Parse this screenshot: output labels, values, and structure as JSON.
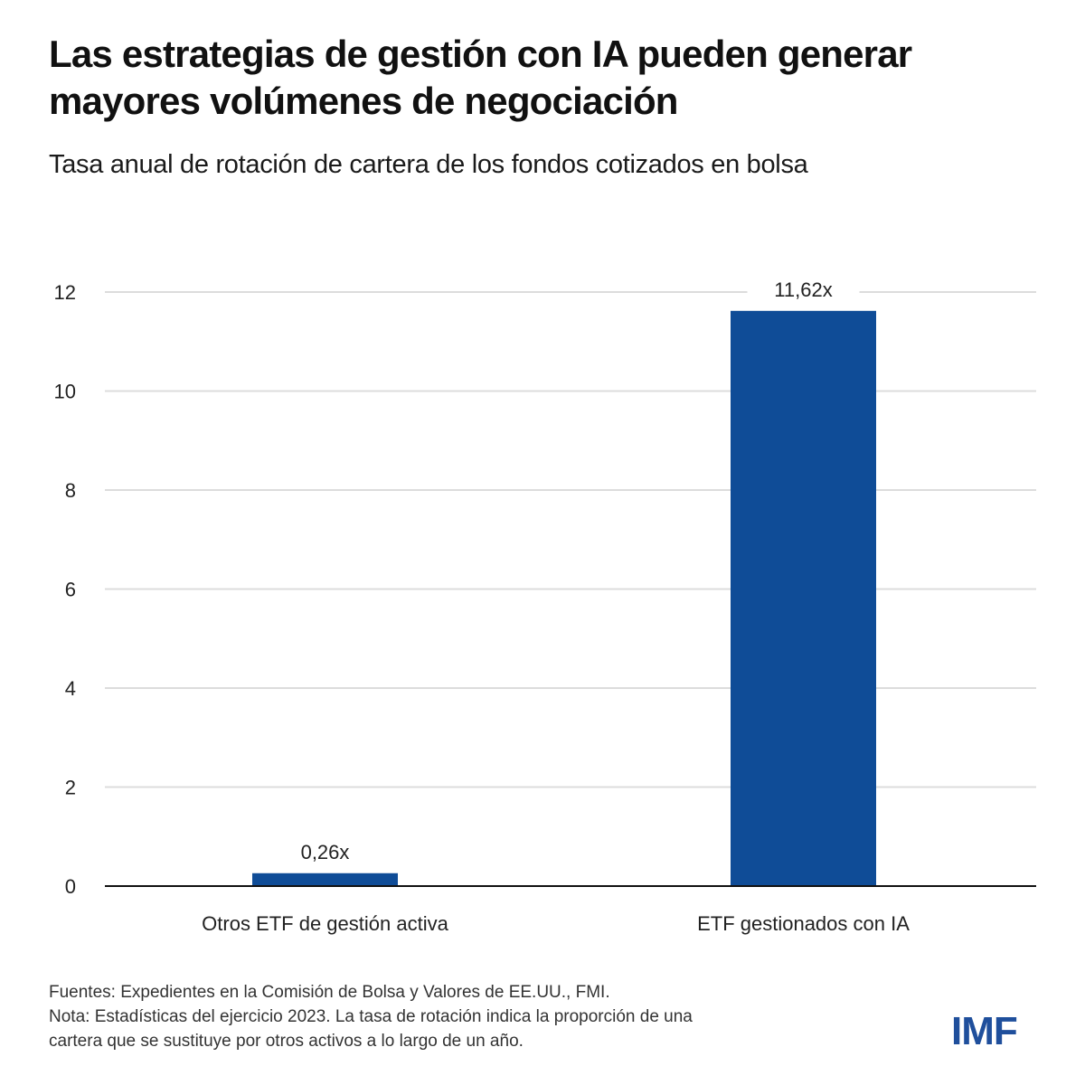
{
  "header": {
    "title": "Las estrategias de gestión con IA pueden generar mayores volúmenes de negociación",
    "subtitle": "Tasa anual de rotación de cartera de los fondos cotizados en bolsa"
  },
  "chart_data": {
    "type": "bar",
    "title": "Las estrategias de gestión con IA pueden generar mayores volúmenes de negociación",
    "subtitle": "Tasa anual de rotación de cartera de los fondos cotizados en bolsa",
    "categories": [
      "Otros ETF de gestión activa",
      "ETF gestionados con IA"
    ],
    "values": [
      0.26,
      11.62
    ],
    "data_labels": [
      "0,26x",
      "11,62x"
    ],
    "xlabel": "",
    "ylabel": "",
    "ylim": [
      0,
      12
    ],
    "yticks": [
      0,
      2,
      4,
      6,
      8,
      10,
      12
    ],
    "ytick_labels": [
      "0",
      "2",
      "4",
      "6",
      "8",
      "10",
      "12"
    ],
    "grid": true,
    "legend": "none",
    "bar_color": "#0f4c97"
  },
  "footer": {
    "sources": "Fuentes: Expedientes en la Comisión de Bolsa y Valores de EE.UU., FMI.",
    "note_line1": "Nota: Estadísticas del ejercicio 2023. La tasa de rotación indica la proporción de una",
    "note_line2": "cartera que se sustituye por otros activos a lo largo de un año."
  },
  "logo": {
    "text": "IMF",
    "color": "#1f4f9c"
  }
}
